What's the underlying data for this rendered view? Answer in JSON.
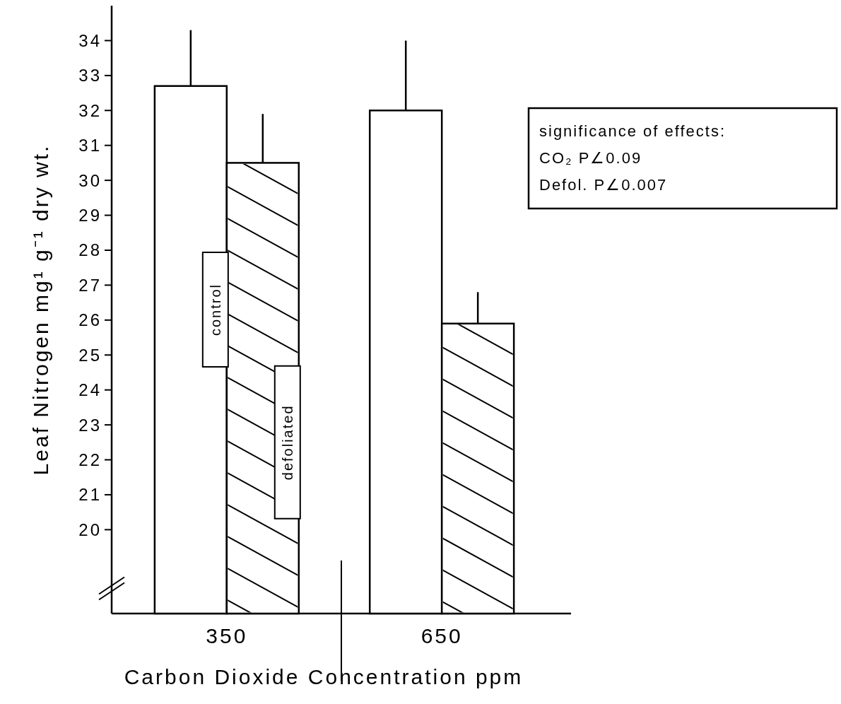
{
  "chart_data": {
    "type": "bar",
    "xlabel": "Carbon  Dioxide Concentration  ppm",
    "ylabel": "Leaf Nitrogen  mg¹ g⁻¹ dry wt.",
    "categories": [
      "350",
      "650"
    ],
    "series": [
      {
        "name": "control",
        "color": "#ffffff",
        "values": [
          32.7,
          32.0
        ],
        "errors": [
          [
            32.7,
            34.3
          ],
          [
            32.0,
            34.0
          ]
        ]
      },
      {
        "name": "defoliated",
        "color": "#ffffff",
        "values": [
          30.5,
          25.9
        ],
        "errors": [
          [
            30.5,
            31.9
          ],
          [
            25.9,
            26.8
          ]
        ]
      }
    ],
    "ylim": [
      17.6,
      35
    ],
    "yticks": [
      20,
      21,
      22,
      23,
      24,
      25,
      26,
      27,
      28,
      29,
      30,
      31,
      32,
      33,
      34
    ],
    "annotations": [
      "significance of effects:",
      "CO₂  P∠0.09",
      "Defol. P∠0.007"
    ]
  }
}
